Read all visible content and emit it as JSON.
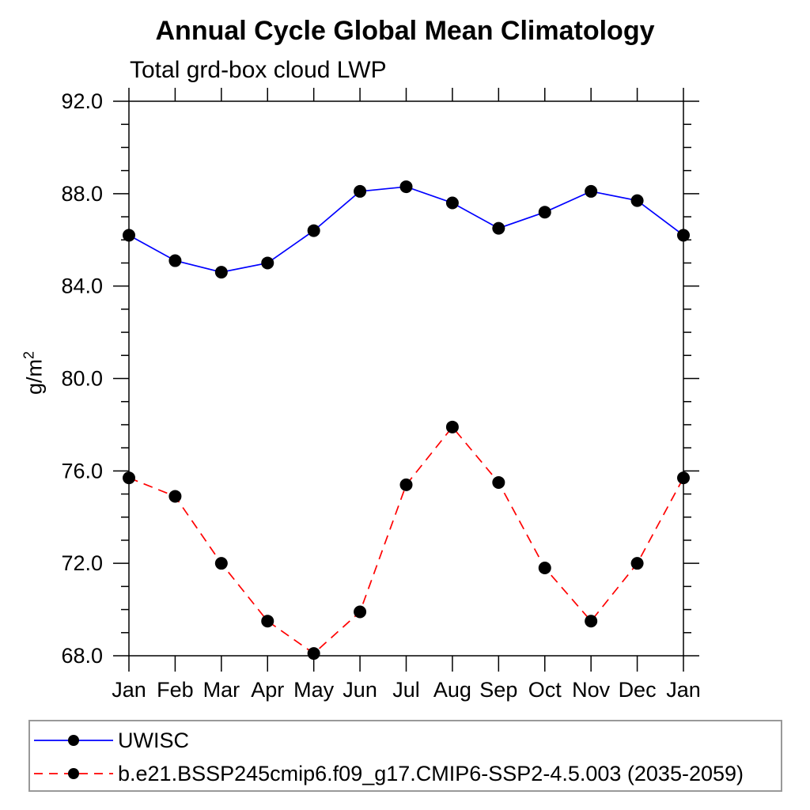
{
  "chart_data": {
    "type": "line",
    "title": "Annual Cycle Global Mean Climatology",
    "subtitle": "Total grd-box cloud LWP",
    "ylabel": "g/m²",
    "ylabel_base": "g/m",
    "ylabel_exp": "2",
    "categories": [
      "Jan",
      "Feb",
      "Mar",
      "Apr",
      "May",
      "Jun",
      "Jul",
      "Aug",
      "Sep",
      "Oct",
      "Nov",
      "Dec",
      "Jan"
    ],
    "ylim": [
      68.0,
      92.0
    ],
    "ytick_interval": 4.0,
    "ytick_minor_interval": 1.0,
    "ytick_labels": [
      "68.0",
      "72.0",
      "76.0",
      "80.0",
      "84.0",
      "88.0",
      "92.0"
    ],
    "grid": false,
    "legend_position": "bottom",
    "axis_color": "#000000",
    "marker_color": "#000000",
    "series": [
      {
        "name": "UWISC",
        "color": "#0000ff",
        "line_style": "solid",
        "marker": "circle",
        "values": [
          86.2,
          85.1,
          84.6,
          85.0,
          86.4,
          88.1,
          88.3,
          87.6,
          86.5,
          87.2,
          88.1,
          87.7,
          86.2
        ]
      },
      {
        "name": "b.e21.BSSP245cmip6.f09_g17.CMIP6-SSP2-4.5.003 (2035-2059)",
        "color": "#ff0000",
        "line_style": "dashed",
        "marker": "circle",
        "values": [
          75.7,
          74.9,
          72.0,
          69.5,
          68.1,
          69.9,
          75.4,
          77.9,
          75.5,
          71.8,
          69.5,
          72.0,
          75.7
        ]
      }
    ]
  }
}
